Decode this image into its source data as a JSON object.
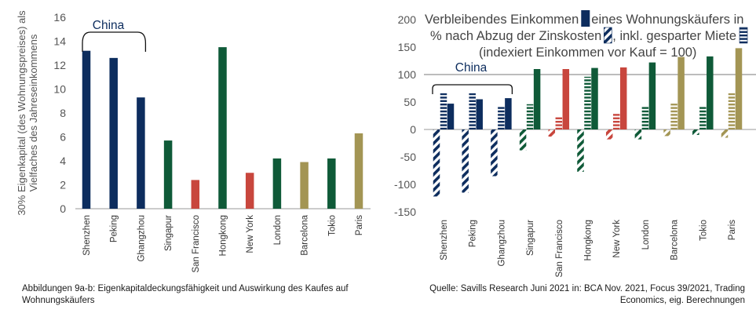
{
  "colors": {
    "china": "#0d2d5e",
    "green": "#0f5a38",
    "red": "#c8463d",
    "gold": "#a39554",
    "axis_text": "#555555",
    "legend_text": "#444444"
  },
  "chart_data": [
    {
      "type": "bar",
      "categories": [
        "Shenzhen",
        "Peking",
        "Ghangzhou",
        "Singapur",
        "San Francisco",
        "Hongkong",
        "New York",
        "London",
        "Barcelona",
        "Tokio",
        "Paris"
      ],
      "values": [
        13.2,
        12.6,
        9.3,
        5.7,
        2.4,
        13.5,
        3.0,
        4.2,
        3.9,
        4.2,
        6.3
      ],
      "bar_colors": [
        "china",
        "china",
        "china",
        "green",
        "red",
        "green",
        "red",
        "green",
        "gold",
        "green",
        "gold"
      ],
      "ylabel": "30% Eigenkapital (des Wohnungspreises) als Vielfaches des Jahreseinkommens",
      "ylim": [
        0,
        16
      ],
      "yticks": [
        0,
        2,
        4,
        6,
        8,
        10,
        12,
        14,
        16
      ],
      "group_label": "China",
      "grid": false
    },
    {
      "type": "bar",
      "categories": [
        "Shenzhen",
        "Peking",
        "Ghangzhou",
        "Singapur",
        "San Francisco",
        "Hongkong",
        "New York",
        "London",
        "Barcelona",
        "Tokio",
        "Paris"
      ],
      "bar_colors": [
        "china",
        "china",
        "china",
        "green",
        "red",
        "green",
        "red",
        "green",
        "gold",
        "green",
        "gold"
      ],
      "series": [
        {
          "name": "Verbleibendes Einkommen eines Wohnungskäufers in % nach Abzug der Zinskosten",
          "style": "diagonal",
          "values": [
            -122,
            -115,
            -85,
            -38,
            -13,
            -77,
            -18,
            -18,
            -12,
            -10,
            -15
          ]
        },
        {
          "name": "inkl. gesparter Miete",
          "style": "horizontal",
          "values": [
            66,
            66,
            42,
            46,
            23,
            96,
            30,
            42,
            47,
            42,
            66
          ]
        },
        {
          "name": "",
          "style": "solid",
          "values": [
            47,
            55,
            57,
            110,
            110,
            112,
            113,
            122,
            132,
            133,
            148
          ]
        }
      ],
      "legend": {
        "line1_a": "Verbleibendes Einkommen",
        "line1_b": "eines Wohnungskäufers in",
        "line2_a": "% nach Abzug der Zinskosten",
        "line2_b": ", inkl. gesparter Miete",
        "line3": "(indexiert Einkommen vor Kauf = 100)",
        "placement": "top"
      },
      "ylim": [
        -150,
        200
      ],
      "yticks": [
        -150,
        -100,
        -50,
        0,
        50,
        100,
        150,
        200
      ],
      "reference_line": 100,
      "group_label": "China",
      "grid": false
    }
  ],
  "captions": {
    "left": "Abbildungen 9a-b: Eigenkapitaldeckungsfähigkeit und Auswirkung des Kaufes auf Wohnungskäufers",
    "right": "Quelle: Savills Research Juni 2021 in: BCA Nov. 2021, Focus 39/2021, Trading Economics, eig. Berechnungen"
  }
}
